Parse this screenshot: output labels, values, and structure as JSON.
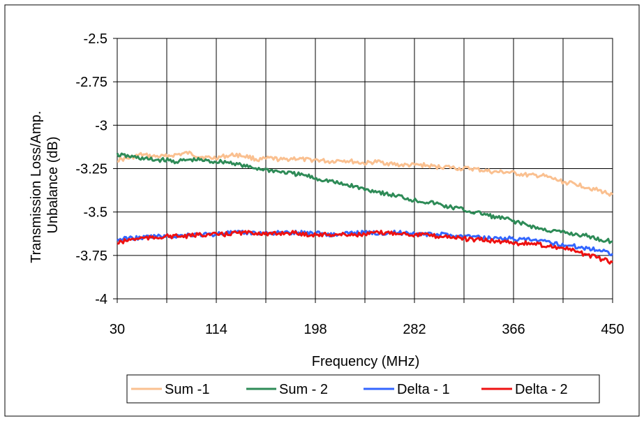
{
  "chart_data": {
    "type": "line",
    "title": "",
    "xlabel": "Frequency (MHz)",
    "ylabel": "Transmission Loss/Amp. Unbalance (dB)",
    "ylabel_lines": [
      "Transmission Loss/Amp.",
      "Unbalance (dB)"
    ],
    "xlim": [
      30,
      450
    ],
    "ylim": [
      -4,
      -2.5
    ],
    "x_ticks": [
      30,
      114,
      198,
      282,
      366,
      450
    ],
    "y_ticks": [
      -2.5,
      -2.75,
      -3,
      -3.25,
      -3.5,
      -3.75,
      -4
    ],
    "x_tick_labels": [
      "30",
      "114",
      "198",
      "282",
      "366",
      "450"
    ],
    "y_tick_labels": [
      "-2.5",
      "-2.75",
      "-3",
      "-3.25",
      "-3.5",
      "-3.75",
      "-4"
    ],
    "grid": true,
    "legend_position": "bottom",
    "series": [
      {
        "name": "Sum -1",
        "color": "#fac090",
        "x": [
          30,
          40,
          50,
          60,
          70,
          80,
          90,
          100,
          110,
          120,
          130,
          140,
          150,
          160,
          170,
          180,
          190,
          200,
          210,
          220,
          230,
          240,
          250,
          260,
          270,
          280,
          290,
          300,
          310,
          320,
          330,
          340,
          350,
          360,
          370,
          380,
          390,
          400,
          410,
          420,
          430,
          440,
          450
        ],
        "y": [
          -3.2,
          -3.19,
          -3.17,
          -3.18,
          -3.18,
          -3.17,
          -3.16,
          -3.18,
          -3.19,
          -3.18,
          -3.17,
          -3.18,
          -3.2,
          -3.19,
          -3.2,
          -3.19,
          -3.2,
          -3.2,
          -3.21,
          -3.2,
          -3.21,
          -3.22,
          -3.21,
          -3.22,
          -3.23,
          -3.23,
          -3.23,
          -3.24,
          -3.24,
          -3.25,
          -3.25,
          -3.26,
          -3.27,
          -3.27,
          -3.28,
          -3.29,
          -3.29,
          -3.31,
          -3.33,
          -3.34,
          -3.36,
          -3.38,
          -3.4
        ]
      },
      {
        "name": "Sum - 2",
        "color": "#2e8b57",
        "x": [
          30,
          40,
          50,
          60,
          70,
          80,
          90,
          100,
          110,
          120,
          130,
          140,
          150,
          160,
          170,
          180,
          190,
          200,
          210,
          220,
          230,
          240,
          250,
          260,
          270,
          280,
          290,
          300,
          310,
          320,
          330,
          340,
          350,
          360,
          370,
          380,
          390,
          400,
          410,
          420,
          430,
          440,
          450
        ],
        "y": [
          -3.17,
          -3.18,
          -3.19,
          -3.2,
          -3.2,
          -3.21,
          -3.2,
          -3.2,
          -3.21,
          -3.21,
          -3.22,
          -3.24,
          -3.25,
          -3.26,
          -3.27,
          -3.28,
          -3.29,
          -3.31,
          -3.32,
          -3.34,
          -3.35,
          -3.37,
          -3.38,
          -3.4,
          -3.41,
          -3.43,
          -3.44,
          -3.45,
          -3.47,
          -3.48,
          -3.5,
          -3.51,
          -3.53,
          -3.54,
          -3.56,
          -3.58,
          -3.6,
          -3.61,
          -3.62,
          -3.63,
          -3.64,
          -3.66,
          -3.67
        ]
      },
      {
        "name": "Delta - 1",
        "color": "#3366ff",
        "x": [
          30,
          40,
          50,
          60,
          70,
          80,
          90,
          100,
          110,
          120,
          130,
          140,
          150,
          160,
          170,
          180,
          190,
          200,
          210,
          220,
          230,
          240,
          250,
          260,
          270,
          280,
          290,
          300,
          310,
          320,
          330,
          340,
          350,
          360,
          370,
          380,
          390,
          400,
          410,
          420,
          430,
          440,
          450
        ],
        "y": [
          -3.66,
          -3.65,
          -3.65,
          -3.64,
          -3.64,
          -3.64,
          -3.63,
          -3.63,
          -3.63,
          -3.62,
          -3.62,
          -3.62,
          -3.62,
          -3.62,
          -3.62,
          -3.62,
          -3.62,
          -3.62,
          -3.63,
          -3.63,
          -3.62,
          -3.62,
          -3.62,
          -3.62,
          -3.62,
          -3.62,
          -3.63,
          -3.63,
          -3.63,
          -3.64,
          -3.64,
          -3.65,
          -3.65,
          -3.65,
          -3.66,
          -3.66,
          -3.67,
          -3.68,
          -3.69,
          -3.7,
          -3.71,
          -3.72,
          -3.74
        ]
      },
      {
        "name": "Delta - 2",
        "color": "#ee1111",
        "x": [
          30,
          40,
          50,
          60,
          70,
          80,
          90,
          100,
          110,
          120,
          130,
          140,
          150,
          160,
          170,
          180,
          190,
          200,
          210,
          220,
          230,
          240,
          250,
          260,
          270,
          280,
          290,
          300,
          310,
          320,
          330,
          340,
          350,
          360,
          370,
          380,
          390,
          400,
          410,
          420,
          430,
          440,
          450
        ],
        "y": [
          -3.68,
          -3.66,
          -3.65,
          -3.65,
          -3.64,
          -3.64,
          -3.64,
          -3.63,
          -3.63,
          -3.63,
          -3.62,
          -3.62,
          -3.62,
          -3.63,
          -3.62,
          -3.62,
          -3.63,
          -3.63,
          -3.63,
          -3.63,
          -3.63,
          -3.63,
          -3.62,
          -3.62,
          -3.62,
          -3.63,
          -3.63,
          -3.64,
          -3.64,
          -3.65,
          -3.66,
          -3.66,
          -3.67,
          -3.67,
          -3.68,
          -3.68,
          -3.69,
          -3.7,
          -3.71,
          -3.73,
          -3.75,
          -3.77,
          -3.79
        ]
      }
    ]
  }
}
